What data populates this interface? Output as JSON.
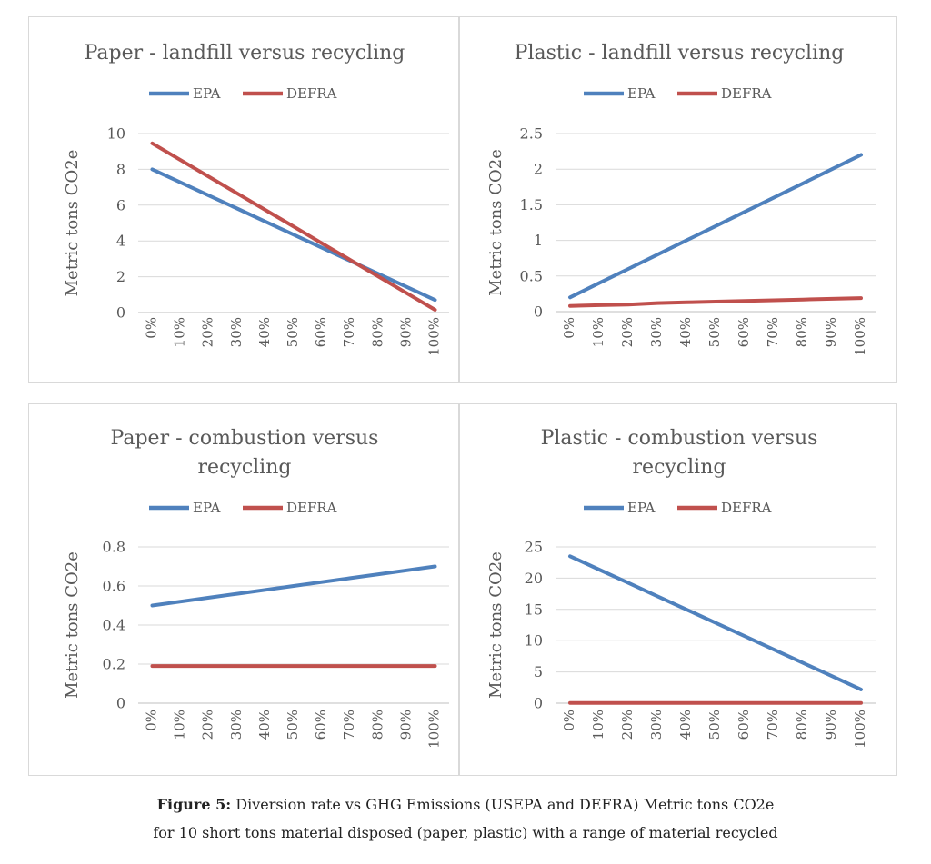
{
  "chart_data": [
    {
      "type": "line",
      "title": [
        "Paper - landfill versus recycling"
      ],
      "ylabel": "Metric tons CO2e",
      "xlabel": "",
      "categories": [
        "0%",
        "10%",
        "20%",
        "30%",
        "40%",
        "50%",
        "60%",
        "70%",
        "80%",
        "90%",
        "100%"
      ],
      "ylim": [
        0,
        10
      ],
      "yticks": [
        "0",
        "2",
        "4",
        "6",
        "8",
        "10"
      ],
      "grid": true,
      "legend": "top",
      "series": [
        {
          "name": "EPA",
          "color": "#4f81bd",
          "values": [
            8.0,
            7.27,
            6.54,
            5.81,
            5.08,
            4.35,
            3.62,
            2.89,
            2.16,
            1.43,
            0.7
          ]
        },
        {
          "name": "DEFRA",
          "color": "#c0504d",
          "values": [
            9.45,
            8.52,
            7.59,
            6.66,
            5.73,
            4.8,
            3.87,
            2.94,
            2.01,
            1.08,
            0.15
          ]
        }
      ]
    },
    {
      "type": "line",
      "title": [
        "Plastic - landfill versus recycling"
      ],
      "ylabel": "Metric tons CO2e",
      "xlabel": "",
      "categories": [
        "0%",
        "10%",
        "20%",
        "30%",
        "40%",
        "50%",
        "60%",
        "70%",
        "80%",
        "90%",
        "100%"
      ],
      "ylim": [
        0,
        2.5
      ],
      "yticks": [
        "0",
        "0.5",
        "1",
        "1.5",
        "2",
        "2.5"
      ],
      "grid": true,
      "legend": "top",
      "series": [
        {
          "name": "EPA",
          "color": "#4f81bd",
          "values": [
            0.2,
            0.4,
            0.6,
            0.8,
            1.0,
            1.2,
            1.4,
            1.6,
            1.8,
            2.0,
            2.2
          ]
        },
        {
          "name": "DEFRA",
          "color": "#c0504d",
          "values": [
            0.08,
            0.09,
            0.1,
            0.12,
            0.13,
            0.14,
            0.15,
            0.16,
            0.17,
            0.18,
            0.19
          ]
        }
      ]
    },
    {
      "type": "line",
      "title": [
        "Paper - combustion versus",
        "recycling"
      ],
      "ylabel": "Metric tons CO2e",
      "xlabel": "",
      "categories": [
        "0%",
        "10%",
        "20%",
        "30%",
        "40%",
        "50%",
        "60%",
        "70%",
        "80%",
        "90%",
        "100%"
      ],
      "ylim": [
        0,
        0.8
      ],
      "yticks": [
        "0",
        "0.2",
        "0.4",
        "0.6",
        "0.8"
      ],
      "grid": true,
      "legend": "top",
      "series": [
        {
          "name": "EPA",
          "color": "#4f81bd",
          "values": [
            0.5,
            0.52,
            0.54,
            0.56,
            0.58,
            0.6,
            0.62,
            0.64,
            0.66,
            0.68,
            0.7
          ]
        },
        {
          "name": "DEFRA",
          "color": "#c0504d",
          "values": [
            0.19,
            0.19,
            0.19,
            0.19,
            0.19,
            0.19,
            0.19,
            0.19,
            0.19,
            0.19,
            0.19
          ]
        }
      ]
    },
    {
      "type": "line",
      "title": [
        "Plastic - combustion versus",
        "recycling"
      ],
      "ylabel": "Metric tons CO2e",
      "xlabel": "",
      "categories": [
        "0%",
        "10%",
        "20%",
        "30%",
        "40%",
        "50%",
        "60%",
        "70%",
        "80%",
        "90%",
        "100%"
      ],
      "ylim": [
        0,
        25
      ],
      "yticks": [
        "0",
        "5",
        "10",
        "15",
        "20",
        "25"
      ],
      "grid": true,
      "legend": "top",
      "series": [
        {
          "name": "EPA",
          "color": "#4f81bd",
          "values": [
            23.5,
            21.37,
            19.24,
            17.11,
            14.98,
            12.85,
            10.72,
            8.59,
            6.46,
            4.33,
            2.2
          ]
        },
        {
          "name": "DEFRA",
          "color": "#c0504d",
          "values": [
            0.05,
            0.05,
            0.05,
            0.05,
            0.05,
            0.05,
            0.05,
            0.05,
            0.05,
            0.05,
            0.05
          ]
        }
      ]
    }
  ],
  "caption": {
    "label": "Figure 5:",
    "line1": " Diversion rate vs GHG Emissions (USEPA and DEFRA) Metric tons CO2e",
    "line2": "for 10 short tons material disposed (paper, plastic) with a range of material recycled"
  }
}
